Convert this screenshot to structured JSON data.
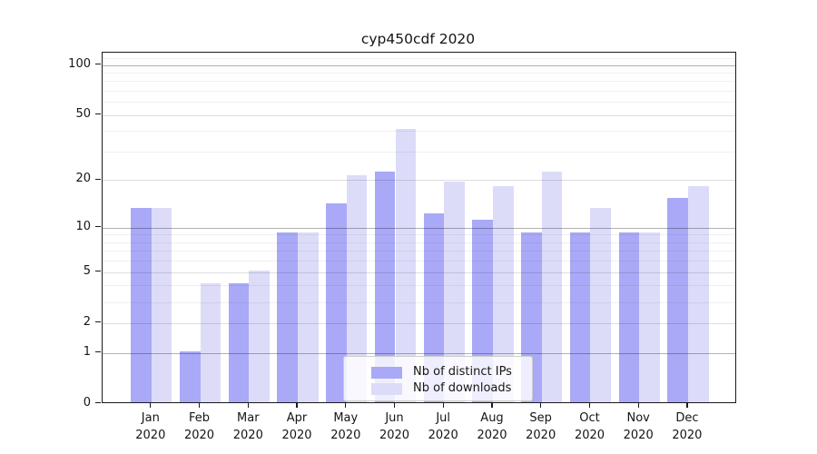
{
  "chart_data": {
    "type": "bar",
    "title": "cyp450cdf 2020",
    "categories": [
      "Jan",
      "Feb",
      "Mar",
      "Apr",
      "May",
      "Jun",
      "Jul",
      "Aug",
      "Sep",
      "Oct",
      "Nov",
      "Dec"
    ],
    "year_label": "2020",
    "series": [
      {
        "name": "Nb of distinct IPs",
        "color": "#a9a9f7",
        "values": [
          13,
          1,
          4,
          9,
          14,
          22,
          12,
          11,
          9,
          9,
          9,
          15
        ]
      },
      {
        "name": "Nb of downloads",
        "color": "#dcdcf9",
        "values": [
          13,
          4,
          5,
          9,
          21,
          40,
          19,
          18,
          22,
          13,
          9,
          18
        ]
      }
    ],
    "yscale": "log1p",
    "ylim": [
      0,
      119
    ],
    "yticks": [
      0,
      1,
      2,
      5,
      10,
      20,
      50,
      100
    ],
    "gridlines": {
      "major": [
        1,
        10,
        100
      ],
      "mid": [
        2,
        5,
        20,
        50
      ],
      "minor": [
        3,
        4,
        6,
        7,
        8,
        9,
        30,
        40,
        60,
        70,
        80,
        90,
        110
      ]
    },
    "grid": true,
    "legend_position": "inside-lower-center"
  }
}
